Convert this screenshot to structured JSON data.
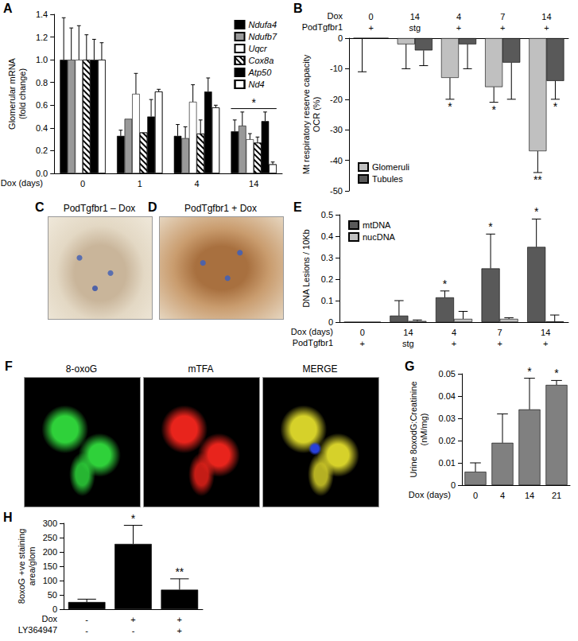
{
  "chart_data": [
    {
      "panel": "A",
      "type": "bar",
      "ylabel": "Glomerular mRNA\n(fold change)",
      "xlabel": "Dox (days)",
      "categories": [
        "0",
        "1",
        "4",
        "14"
      ],
      "ylim": [
        0,
        1.4
      ],
      "yticks": [
        {
          "value": 0,
          "label": "0.0"
        },
        0.2,
        0.4,
        0.6,
        0.8,
        {
          "value": 1,
          "label": "1.0"
        },
        1.2,
        1.4
      ],
      "grid": false,
      "legend": "top-right",
      "series": [
        {
          "name": "Ndufa4",
          "color": "#000000",
          "values": [
            1,
            0.33,
            0.33,
            0.37
          ],
          "errors": [
            0.37,
            0.05,
            0.1,
            0.1
          ]
        },
        {
          "name": "Ndufb7",
          "color": "#999999",
          "values": [
            1,
            0.48,
            0.31,
            0.42
          ],
          "errors": [
            0.28,
            0,
            0.1,
            0.12
          ]
        },
        {
          "name": "Uqcr",
          "color": "#ffffff",
          "values": [
            1,
            0.7,
            0.63,
            0.3
          ],
          "errors": [
            0.3,
            0.18,
            0.15,
            0.05
          ]
        },
        {
          "name": "Cox8a",
          "color": "#ffffff",
          "marker": "hatch",
          "values": [
            1,
            0.36,
            0.35,
            0.27
          ],
          "errors": [
            0.22,
            0,
            0.12,
            0.05
          ]
        },
        {
          "name": "Atp50",
          "color": "#000000",
          "values": [
            1,
            0.5,
            0.72,
            0.46
          ],
          "errors": [
            0.18,
            0.15,
            0.12,
            0.08
          ]
        },
        {
          "name": "Nd4",
          "color": "#ffffff",
          "marker": "dots",
          "values": [
            1,
            0.72,
            0.58,
            0.08
          ],
          "errors": [
            0.15,
            0.02,
            0.02,
            0.02
          ]
        }
      ],
      "brackets": [
        {
          "category": "14",
          "text": "*",
          "y": 0.57
        }
      ]
    },
    {
      "panel": "B",
      "type": "bar",
      "ylabel": "Mt respiratory reserve capacity\nOCR (%)",
      "xlabel": "Dox",
      "categories": [
        "0",
        "14",
        "4",
        "7",
        "14"
      ],
      "x_subrow": {
        "label": "PodTgfbr1",
        "values": [
          "+",
          "stg",
          "+",
          "+",
          "+"
        ]
      },
      "ylim": [
        -50,
        0
      ],
      "yticks": [
        -50,
        -40,
        -30,
        -20,
        -10,
        0
      ],
      "grid": false,
      "legend": "bottom-left",
      "series": [
        {
          "name": "Glomeruli",
          "color": "#c0c0c0",
          "values": [
            0,
            -2,
            -13,
            -16,
            -37
          ],
          "errors": [
            11,
            8,
            7,
            5,
            7
          ],
          "significance": [
            null,
            null,
            "*",
            "*",
            "**"
          ]
        },
        {
          "name": "Tubules",
          "color": "#595959",
          "values": [
            0,
            -4,
            -2,
            -8,
            -14
          ],
          "errors": [
            0,
            5,
            8,
            12,
            6
          ],
          "significance": [
            null,
            null,
            null,
            null,
            "*"
          ]
        }
      ]
    },
    {
      "panel": "E",
      "type": "bar",
      "ylabel": "DNA Lesions / 10Kb",
      "xlabel": "Dox (days)",
      "categories": [
        "0",
        "14",
        "4",
        "7",
        "14"
      ],
      "x_subrow": {
        "label": "PodTgfbr1",
        "values": [
          "+",
          "stg",
          "+",
          "+",
          "+"
        ]
      },
      "ylim": [
        0,
        0.5
      ],
      "yticks": [
        0,
        0.1,
        0.2,
        0.3,
        0.4,
        0.5
      ],
      "grid": false,
      "legend": "top-left",
      "series": [
        {
          "name": "mtDNA",
          "color": "#595959",
          "values": [
            0,
            0.03,
            0.115,
            0.25,
            0.35
          ],
          "errors": [
            0,
            0.07,
            0.03,
            0.16,
            0.13
          ],
          "significance": [
            null,
            null,
            "*",
            "*",
            "*"
          ]
        },
        {
          "name": "nucDNA",
          "color": "#c0c0c0",
          "values": [
            0,
            0.005,
            0.015,
            0.015,
            0.003
          ],
          "errors": [
            0,
            0.005,
            0.035,
            0.005,
            0.03
          ]
        }
      ]
    },
    {
      "panel": "G",
      "type": "bar",
      "ylabel": "Urine 8oxodG:Creatinine\n(nM/mg)",
      "xlabel": "Dox (days)",
      "categories": [
        "0",
        "4",
        "14",
        "21"
      ],
      "ylim": [
        0,
        0.05
      ],
      "yticks": [
        0,
        0.01,
        0.02,
        0.03,
        0.04,
        0.05
      ],
      "grid": false,
      "series": [
        {
          "color": "#808080",
          "values": [
            0.006,
            0.019,
            0.034,
            0.045
          ],
          "errors": [
            0.004,
            0.013,
            0.014,
            0.002
          ],
          "significance": [
            null,
            null,
            "*",
            "*"
          ]
        }
      ]
    },
    {
      "panel": "H",
      "type": "bar",
      "ylabel": "8oxoG +ve staining\narea/glom",
      "xlabel": "Dox",
      "categories": [
        "-",
        "+",
        "+"
      ],
      "x_subrow": {
        "label": "LY364947",
        "values": [
          "-",
          "-",
          "+"
        ]
      },
      "ylim": [
        0,
        300
      ],
      "yticks": [
        0,
        50,
        100,
        150,
        200,
        250,
        300
      ],
      "grid": false,
      "series": [
        {
          "color": "#000000",
          "values": [
            25,
            228,
            68
          ],
          "errors": [
            10,
            65,
            38
          ],
          "significance": [
            null,
            "*",
            "**"
          ]
        }
      ]
    }
  ],
  "image_panels": [
    {
      "panel": "C",
      "title": "PodTgfbr1 – Dox"
    },
    {
      "panel": "D",
      "title": "PodTgfbr1 + Dox"
    },
    {
      "panel": "F",
      "titles": [
        "8-oxoG",
        "mTFA",
        "MERGE"
      ]
    }
  ]
}
